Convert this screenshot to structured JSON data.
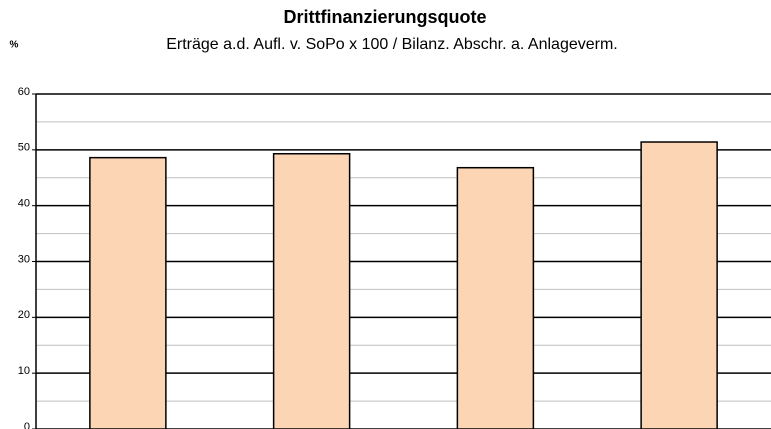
{
  "chart_data": {
    "type": "bar",
    "title": "Drittfinanzierungsquote",
    "subtitle": "Erträge a.d. Aufl. v. SoPo x 100 / Bilanz. Abschr. a. Anlageverm.",
    "y_label": "%",
    "categories": [
      null,
      null,
      null,
      null
    ],
    "values": [
      48.6,
      49.3,
      46.8,
      51.4
    ],
    "color": "#fcd5b4",
    "ylim": [
      0,
      60
    ],
    "yticks": [
      0,
      10,
      20,
      30,
      40,
      50,
      60
    ],
    "minor_yticks": [
      5,
      15,
      25,
      35,
      45,
      55
    ],
    "grid": true
  }
}
